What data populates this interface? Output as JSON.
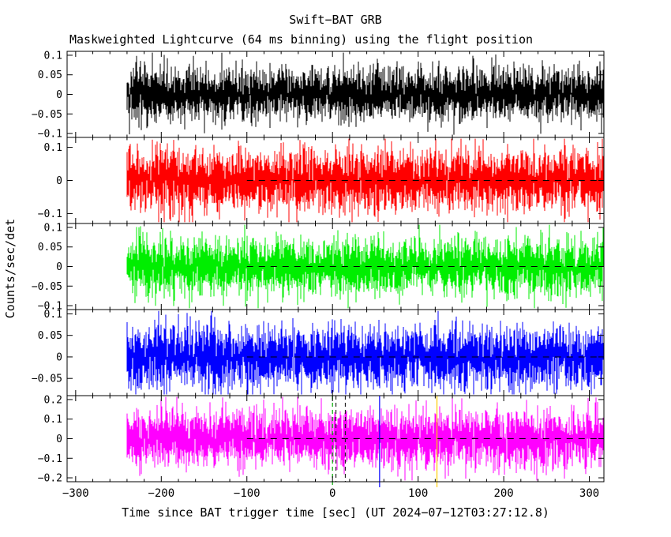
{
  "chart_data": {
    "type": "line",
    "title": "Swift−BAT GRB",
    "subtitle": "Maskweighted Lightcurve (64 ms binning) using the flight position",
    "xlabel": "Time since BAT trigger time [sec] (UT 2024−07−12T03:27:12.8)",
    "ylabel": "Counts/sec/det",
    "background": "#ffffff",
    "frame_color": "#000000",
    "text_color": "#000000",
    "grid": false,
    "legend": "none",
    "xlim": [
      -310,
      317
    ],
    "x_ticks": [
      -300,
      -200,
      -100,
      0,
      100,
      200,
      300
    ],
    "x_minor_step": 20,
    "data_range": [
      -240,
      317
    ],
    "zero_dash_start": -100,
    "panels": [
      {
        "id": "band-1",
        "color": "#000000",
        "ylim": [
          -0.11,
          0.11
        ],
        "y_ticks": [
          0.1,
          0.05,
          0,
          -0.05,
          -0.1
        ],
        "noise_sigma": 0.033,
        "zero_dash": false,
        "seed": 101,
        "markers": []
      },
      {
        "id": "band-2",
        "color": "#ff0000",
        "ylim": [
          -0.13,
          0.13
        ],
        "y_ticks": [
          0.1,
          0,
          -0.1
        ],
        "noise_sigma": 0.045,
        "zero_dash": true,
        "seed": 202,
        "markers": []
      },
      {
        "id": "band-3",
        "color": "#00ee00",
        "ylim": [
          -0.11,
          0.11
        ],
        "y_ticks": [
          0.1,
          0.05,
          0,
          -0.05,
          -0.1
        ],
        "noise_sigma": 0.036,
        "zero_dash": true,
        "seed": 303,
        "markers": []
      },
      {
        "id": "band-4",
        "color": "#0000ff",
        "ylim": [
          -0.09,
          0.11
        ],
        "y_ticks": [
          0.1,
          0.05,
          0,
          -0.05
        ],
        "noise_sigma": 0.035,
        "zero_dash": true,
        "seed": 404,
        "markers": []
      },
      {
        "id": "band-total",
        "color": "#ff00ff",
        "ylim": [
          -0.22,
          0.22
        ],
        "y_ticks": [
          0.2,
          0.1,
          0,
          -0.1,
          -0.2
        ],
        "noise_sigma": 0.07,
        "zero_dash": true,
        "seed": 505,
        "markers": [
          {
            "x": 0,
            "color": "#00aa00",
            "dashed": true,
            "overhang": 7
          },
          {
            "x": 4,
            "color": "#222222",
            "dashed": true,
            "overhang": 0
          },
          {
            "x": 15,
            "color": "#222222",
            "dashed": true,
            "overhang": 0
          },
          {
            "x": 55,
            "color": "#0000ff",
            "dashed": false,
            "overhang": 7
          },
          {
            "x": 122,
            "color": "#ffcc00",
            "dashed": false,
            "overhang": 7
          }
        ]
      }
    ]
  }
}
